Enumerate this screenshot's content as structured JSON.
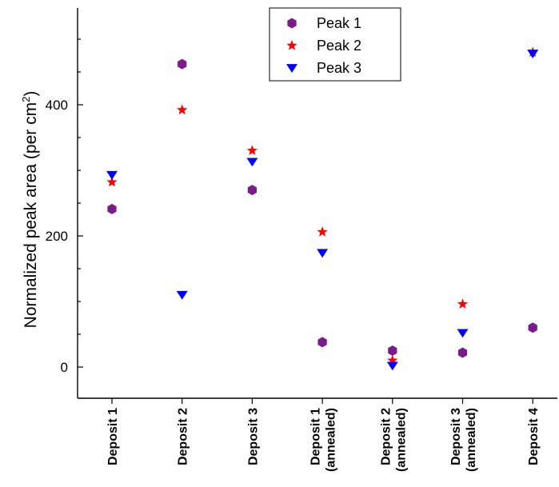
{
  "chart_data": {
    "type": "scatter",
    "title": "",
    "xlabel": "",
    "ylabel": "Normalized peak area (per cm²)",
    "ylabel_main": "Normalized peak area (per cm",
    "ylabel_sup": "2",
    "ylabel_end": ")",
    "ylim": [
      -50,
      560
    ],
    "yticks": [
      0,
      200,
      400
    ],
    "grid": false,
    "legend": "top-center",
    "categories": [
      [
        "Deposit 1"
      ],
      [
        "Deposit 2"
      ],
      [
        "Deposit 3"
      ],
      [
        "Deposit 1",
        "(annealed)"
      ],
      [
        "Deposit 2",
        "(annealed)"
      ],
      [
        "Deposit 3",
        "(annealed)"
      ],
      [
        "Deposit 4"
      ]
    ],
    "series": [
      {
        "name": "Peak 1",
        "marker": "hexagon",
        "color": "#7B1A8A",
        "values": [
          241,
          462,
          270,
          38,
          25,
          22,
          60
        ]
      },
      {
        "name": "Peak 2",
        "marker": "star",
        "color": "#FF0000",
        "values": [
          282,
          392,
          330,
          206,
          10,
          96,
          480
        ]
      },
      {
        "name": "Peak 3",
        "marker": "triangle-down",
        "color": "#0000FF",
        "values": [
          293,
          110,
          313,
          174,
          2,
          52,
          478
        ]
      }
    ]
  }
}
